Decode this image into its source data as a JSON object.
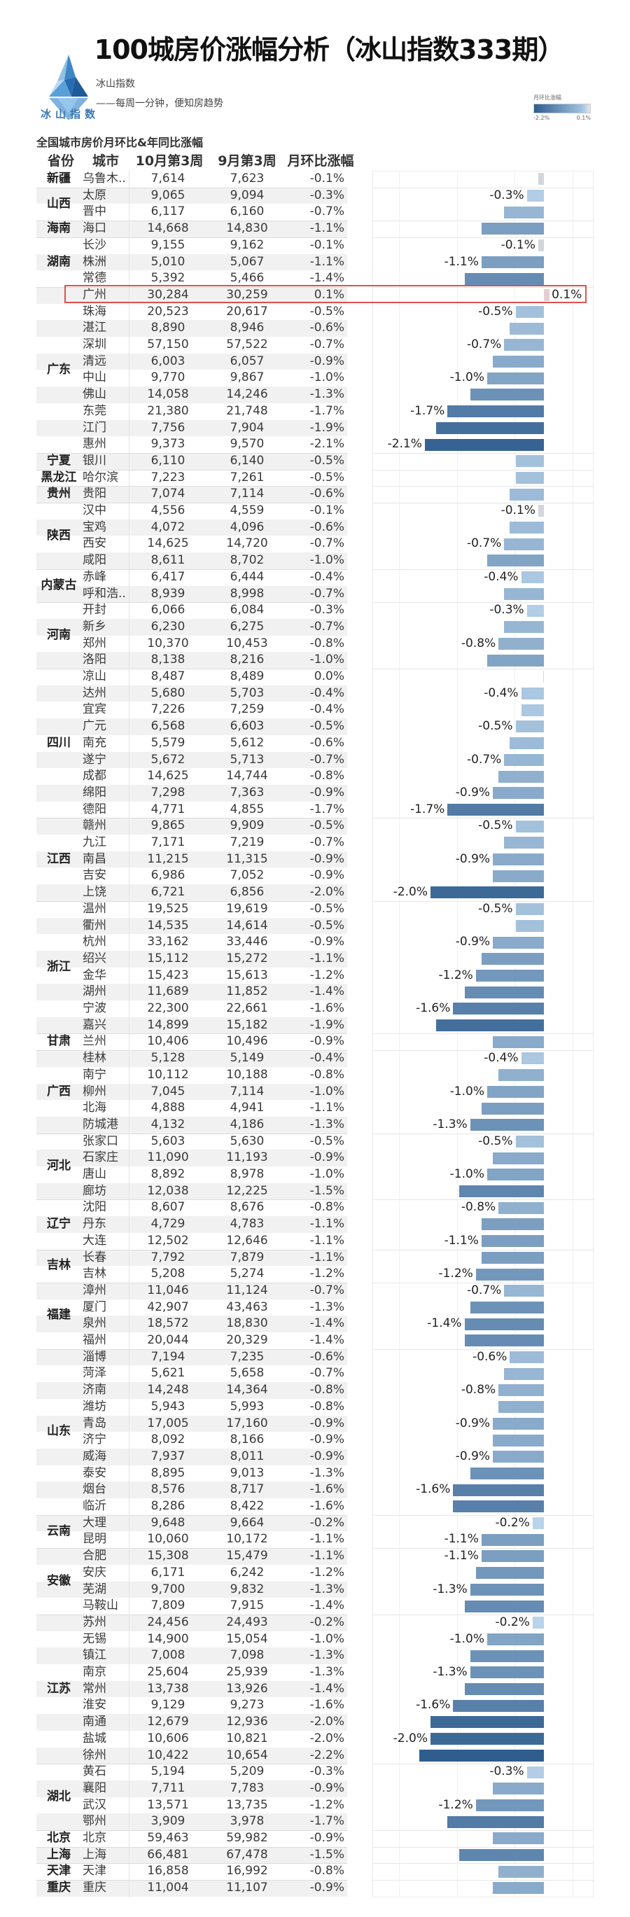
{
  "title": "100城房价涨幅分析（冰山指数333期）",
  "logo": {
    "text": "冰山指数"
  },
  "brand": "冰山指数",
  "tagline": "——每周一分钟，便知房趋势",
  "legend": {
    "title": "月环比涨幅",
    "min_label": "-2.2%",
    "max_label": "0.1%"
  },
  "section_title": "全国城市房价月环比&年同比涨幅",
  "columns": {
    "province": "省份",
    "city": "城市",
    "oct": "10月第3周",
    "sep": "9月第3周",
    "pct": "月环比涨幅"
  },
  "colors": {
    "bar_dark": "#2f5d8e",
    "bar_light": "#b9d3ea",
    "neutral": "#d3d6da",
    "positive": "#e3cfd0",
    "highlight": "#d9534f"
  },
  "highlight_city": "广州",
  "groups": [
    {
      "province": "新疆",
      "rows": [
        [
          "乌鲁木..",
          "7,614",
          "7,623",
          "-0.1%",
          0
        ]
      ]
    },
    {
      "province": "山西",
      "rows": [
        [
          "太原",
          "9,065",
          "9,094",
          "-0.3%",
          1
        ],
        [
          "晋中",
          "6,117",
          "6,160",
          "-0.7%",
          0
        ]
      ]
    },
    {
      "province": "海南",
      "rows": [
        [
          "海口",
          "14,668",
          "14,830",
          "-1.1%",
          0
        ]
      ]
    },
    {
      "province": "湖南",
      "rows": [
        [
          "长沙",
          "9,155",
          "9,162",
          "-0.1%",
          1
        ],
        [
          "株洲",
          "5,010",
          "5,067",
          "-1.1%",
          1
        ],
        [
          "常德",
          "5,392",
          "5,466",
          "-1.4%",
          0
        ]
      ]
    },
    {
      "province": "广东",
      "rows": [
        [
          "广州",
          "30,284",
          "30,259",
          "0.1%",
          1
        ],
        [
          "珠海",
          "20,523",
          "20,617",
          "-0.5%",
          1
        ],
        [
          "湛江",
          "8,890",
          "8,946",
          "-0.6%",
          0
        ],
        [
          "深圳",
          "57,150",
          "57,522",
          "-0.7%",
          1
        ],
        [
          "清远",
          "6,003",
          "6,057",
          "-0.9%",
          0
        ],
        [
          "中山",
          "9,770",
          "9,867",
          "-1.0%",
          1
        ],
        [
          "佛山",
          "14,058",
          "14,246",
          "-1.3%",
          0
        ],
        [
          "东莞",
          "21,380",
          "21,748",
          "-1.7%",
          1
        ],
        [
          "江门",
          "7,756",
          "7,904",
          "-1.9%",
          0
        ],
        [
          "惠州",
          "9,373",
          "9,570",
          "-2.1%",
          1
        ]
      ]
    },
    {
      "province": "宁夏",
      "rows": [
        [
          "银川",
          "6,110",
          "6,140",
          "-0.5%",
          0
        ]
      ]
    },
    {
      "province": "黑龙江",
      "rows": [
        [
          "哈尔滨",
          "7,223",
          "7,261",
          "-0.5%",
          0
        ]
      ]
    },
    {
      "province": "贵州",
      "rows": [
        [
          "贵阳",
          "7,074",
          "7,114",
          "-0.6%",
          0
        ]
      ]
    },
    {
      "province": "陕西",
      "rows": [
        [
          "汉中",
          "4,556",
          "4,559",
          "-0.1%",
          1
        ],
        [
          "宝鸡",
          "4,072",
          "4,096",
          "-0.6%",
          0
        ],
        [
          "西安",
          "14,625",
          "14,720",
          "-0.7%",
          1
        ],
        [
          "咸阳",
          "8,611",
          "8,702",
          "-1.0%",
          0
        ]
      ]
    },
    {
      "province": "内蒙古",
      "rows": [
        [
          "赤峰",
          "6,417",
          "6,444",
          "-0.4%",
          1
        ],
        [
          "呼和浩..",
          "8,939",
          "8,998",
          "-0.7%",
          0
        ]
      ]
    },
    {
      "province": "河南",
      "rows": [
        [
          "开封",
          "6,066",
          "6,084",
          "-0.3%",
          1
        ],
        [
          "新乡",
          "6,230",
          "6,275",
          "-0.7%",
          0
        ],
        [
          "郑州",
          "10,370",
          "10,453",
          "-0.8%",
          1
        ],
        [
          "洛阳",
          "8,138",
          "8,216",
          "-1.0%",
          0
        ]
      ]
    },
    {
      "province": "四川",
      "rows": [
        [
          "凉山",
          "8,487",
          "8,489",
          "0.0%",
          0
        ],
        [
          "达州",
          "5,680",
          "5,703",
          "-0.4%",
          1
        ],
        [
          "宜宾",
          "7,226",
          "7,259",
          "-0.4%",
          0
        ],
        [
          "广元",
          "6,568",
          "6,603",
          "-0.5%",
          1
        ],
        [
          "南充",
          "5,579",
          "5,612",
          "-0.6%",
          0
        ],
        [
          "遂宁",
          "5,672",
          "5,713",
          "-0.7%",
          1
        ],
        [
          "成都",
          "14,625",
          "14,744",
          "-0.8%",
          0
        ],
        [
          "绵阳",
          "7,298",
          "7,363",
          "-0.9%",
          1
        ],
        [
          "德阳",
          "4,771",
          "4,855",
          "-1.7%",
          1
        ]
      ]
    },
    {
      "province": "江西",
      "rows": [
        [
          "赣州",
          "9,865",
          "9,909",
          "-0.5%",
          1
        ],
        [
          "九江",
          "7,171",
          "7,219",
          "-0.7%",
          0
        ],
        [
          "南昌",
          "11,215",
          "11,315",
          "-0.9%",
          1
        ],
        [
          "吉安",
          "6,986",
          "7,052",
          "-0.9%",
          0
        ],
        [
          "上饶",
          "6,721",
          "6,856",
          "-2.0%",
          1
        ]
      ]
    },
    {
      "province": "浙江",
      "rows": [
        [
          "温州",
          "19,525",
          "19,619",
          "-0.5%",
          1
        ],
        [
          "衢州",
          "14,535",
          "14,614",
          "-0.5%",
          0
        ],
        [
          "杭州",
          "33,162",
          "33,446",
          "-0.9%",
          1
        ],
        [
          "绍兴",
          "15,112",
          "15,272",
          "-1.1%",
          0
        ],
        [
          "金华",
          "15,423",
          "15,613",
          "-1.2%",
          1
        ],
        [
          "湖州",
          "11,689",
          "11,852",
          "-1.4%",
          0
        ],
        [
          "宁波",
          "22,300",
          "22,661",
          "-1.6%",
          1
        ],
        [
          "嘉兴",
          "14,899",
          "15,182",
          "-1.9%",
          0
        ]
      ]
    },
    {
      "province": "甘肃",
      "rows": [
        [
          "兰州",
          "10,406",
          "10,496",
          "-0.9%",
          0
        ]
      ]
    },
    {
      "province": "广西",
      "rows": [
        [
          "桂林",
          "5,128",
          "5,149",
          "-0.4%",
          1
        ],
        [
          "南宁",
          "10,112",
          "10,188",
          "-0.8%",
          0
        ],
        [
          "柳州",
          "7,045",
          "7,114",
          "-1.0%",
          1
        ],
        [
          "北海",
          "4,888",
          "4,941",
          "-1.1%",
          0
        ],
        [
          "防城港",
          "4,132",
          "4,186",
          "-1.3%",
          1
        ]
      ]
    },
    {
      "province": "河北",
      "rows": [
        [
          "张家口",
          "5,603",
          "5,630",
          "-0.5%",
          1
        ],
        [
          "石家庄",
          "11,090",
          "11,193",
          "-0.9%",
          0
        ],
        [
          "唐山",
          "8,892",
          "8,978",
          "-1.0%",
          1
        ],
        [
          "廊坊",
          "12,038",
          "12,225",
          "-1.5%",
          0
        ]
      ]
    },
    {
      "province": "辽宁",
      "rows": [
        [
          "沈阳",
          "8,607",
          "8,676",
          "-0.8%",
          1
        ],
        [
          "丹东",
          "4,729",
          "4,783",
          "-1.1%",
          0
        ],
        [
          "大连",
          "12,502",
          "12,646",
          "-1.1%",
          1
        ]
      ]
    },
    {
      "province": "吉林",
      "rows": [
        [
          "长春",
          "7,792",
          "7,879",
          "-1.1%",
          0
        ],
        [
          "吉林",
          "5,208",
          "5,274",
          "-1.2%",
          1
        ]
      ]
    },
    {
      "province": "福建",
      "rows": [
        [
          "漳州",
          "11,046",
          "11,124",
          "-0.7%",
          1
        ],
        [
          "厦门",
          "42,907",
          "43,463",
          "-1.3%",
          0
        ],
        [
          "泉州",
          "18,572",
          "18,830",
          "-1.4%",
          1
        ],
        [
          "福州",
          "20,044",
          "20,329",
          "-1.4%",
          0
        ]
      ]
    },
    {
      "province": "山东",
      "rows": [
        [
          "淄博",
          "7,194",
          "7,235",
          "-0.6%",
          1
        ],
        [
          "菏泽",
          "5,621",
          "5,658",
          "-0.7%",
          0
        ],
        [
          "济南",
          "14,248",
          "14,364",
          "-0.8%",
          1
        ],
        [
          "潍坊",
          "5,943",
          "5,993",
          "-0.8%",
          0
        ],
        [
          "青岛",
          "17,005",
          "17,160",
          "-0.9%",
          1
        ],
        [
          "济宁",
          "8,092",
          "8,166",
          "-0.9%",
          0
        ],
        [
          "威海",
          "7,937",
          "8,011",
          "-0.9%",
          1
        ],
        [
          "泰安",
          "8,895",
          "9,013",
          "-1.3%",
          0
        ],
        [
          "烟台",
          "8,576",
          "8,717",
          "-1.6%",
          1
        ],
        [
          "临沂",
          "8,286",
          "8,422",
          "-1.6%",
          0
        ]
      ]
    },
    {
      "province": "云南",
      "rows": [
        [
          "大理",
          "9,648",
          "9,664",
          "-0.2%",
          1
        ],
        [
          "昆明",
          "10,060",
          "10,172",
          "-1.1%",
          1
        ]
      ]
    },
    {
      "province": "安徽",
      "rows": [
        [
          "合肥",
          "15,308",
          "15,479",
          "-1.1%",
          1
        ],
        [
          "安庆",
          "6,171",
          "6,242",
          "-1.2%",
          0
        ],
        [
          "芜湖",
          "9,700",
          "9,832",
          "-1.3%",
          1
        ],
        [
          "马鞍山",
          "7,809",
          "7,915",
          "-1.4%",
          0
        ]
      ]
    },
    {
      "province": "江苏",
      "rows": [
        [
          "苏州",
          "24,456",
          "24,493",
          "-0.2%",
          1
        ],
        [
          "无锡",
          "14,900",
          "15,054",
          "-1.0%",
          1
        ],
        [
          "镇江",
          "7,008",
          "7,098",
          "-1.3%",
          0
        ],
        [
          "南京",
          "25,604",
          "25,939",
          "-1.3%",
          1
        ],
        [
          "常州",
          "13,738",
          "13,926",
          "-1.4%",
          0
        ],
        [
          "淮安",
          "9,129",
          "9,273",
          "-1.6%",
          1
        ],
        [
          "南通",
          "12,679",
          "12,936",
          "-2.0%",
          0
        ],
        [
          "盐城",
          "10,606",
          "10,821",
          "-2.0%",
          1
        ],
        [
          "徐州",
          "10,422",
          "10,654",
          "-2.2%",
          0
        ]
      ]
    },
    {
      "province": "湖北",
      "rows": [
        [
          "黄石",
          "5,194",
          "5,209",
          "-0.3%",
          1
        ],
        [
          "襄阳",
          "7,711",
          "7,783",
          "-0.9%",
          0
        ],
        [
          "武汉",
          "13,571",
          "13,735",
          "-1.2%",
          1
        ],
        [
          "鄂州",
          "3,909",
          "3,978",
          "-1.7%",
          0
        ]
      ]
    },
    {
      "province": "北京",
      "rows": [
        [
          "北京",
          "59,463",
          "59,982",
          "-0.9%",
          0
        ]
      ]
    },
    {
      "province": "上海",
      "rows": [
        [
          "上海",
          "66,481",
          "67,478",
          "-1.5%",
          0
        ]
      ]
    },
    {
      "province": "天津",
      "rows": [
        [
          "天津",
          "16,858",
          "16,992",
          "-0.8%",
          0
        ]
      ]
    },
    {
      "province": "重庆",
      "rows": [
        [
          "重庆",
          "11,004",
          "11,107",
          "-0.9%",
          0
        ]
      ]
    }
  ]
}
